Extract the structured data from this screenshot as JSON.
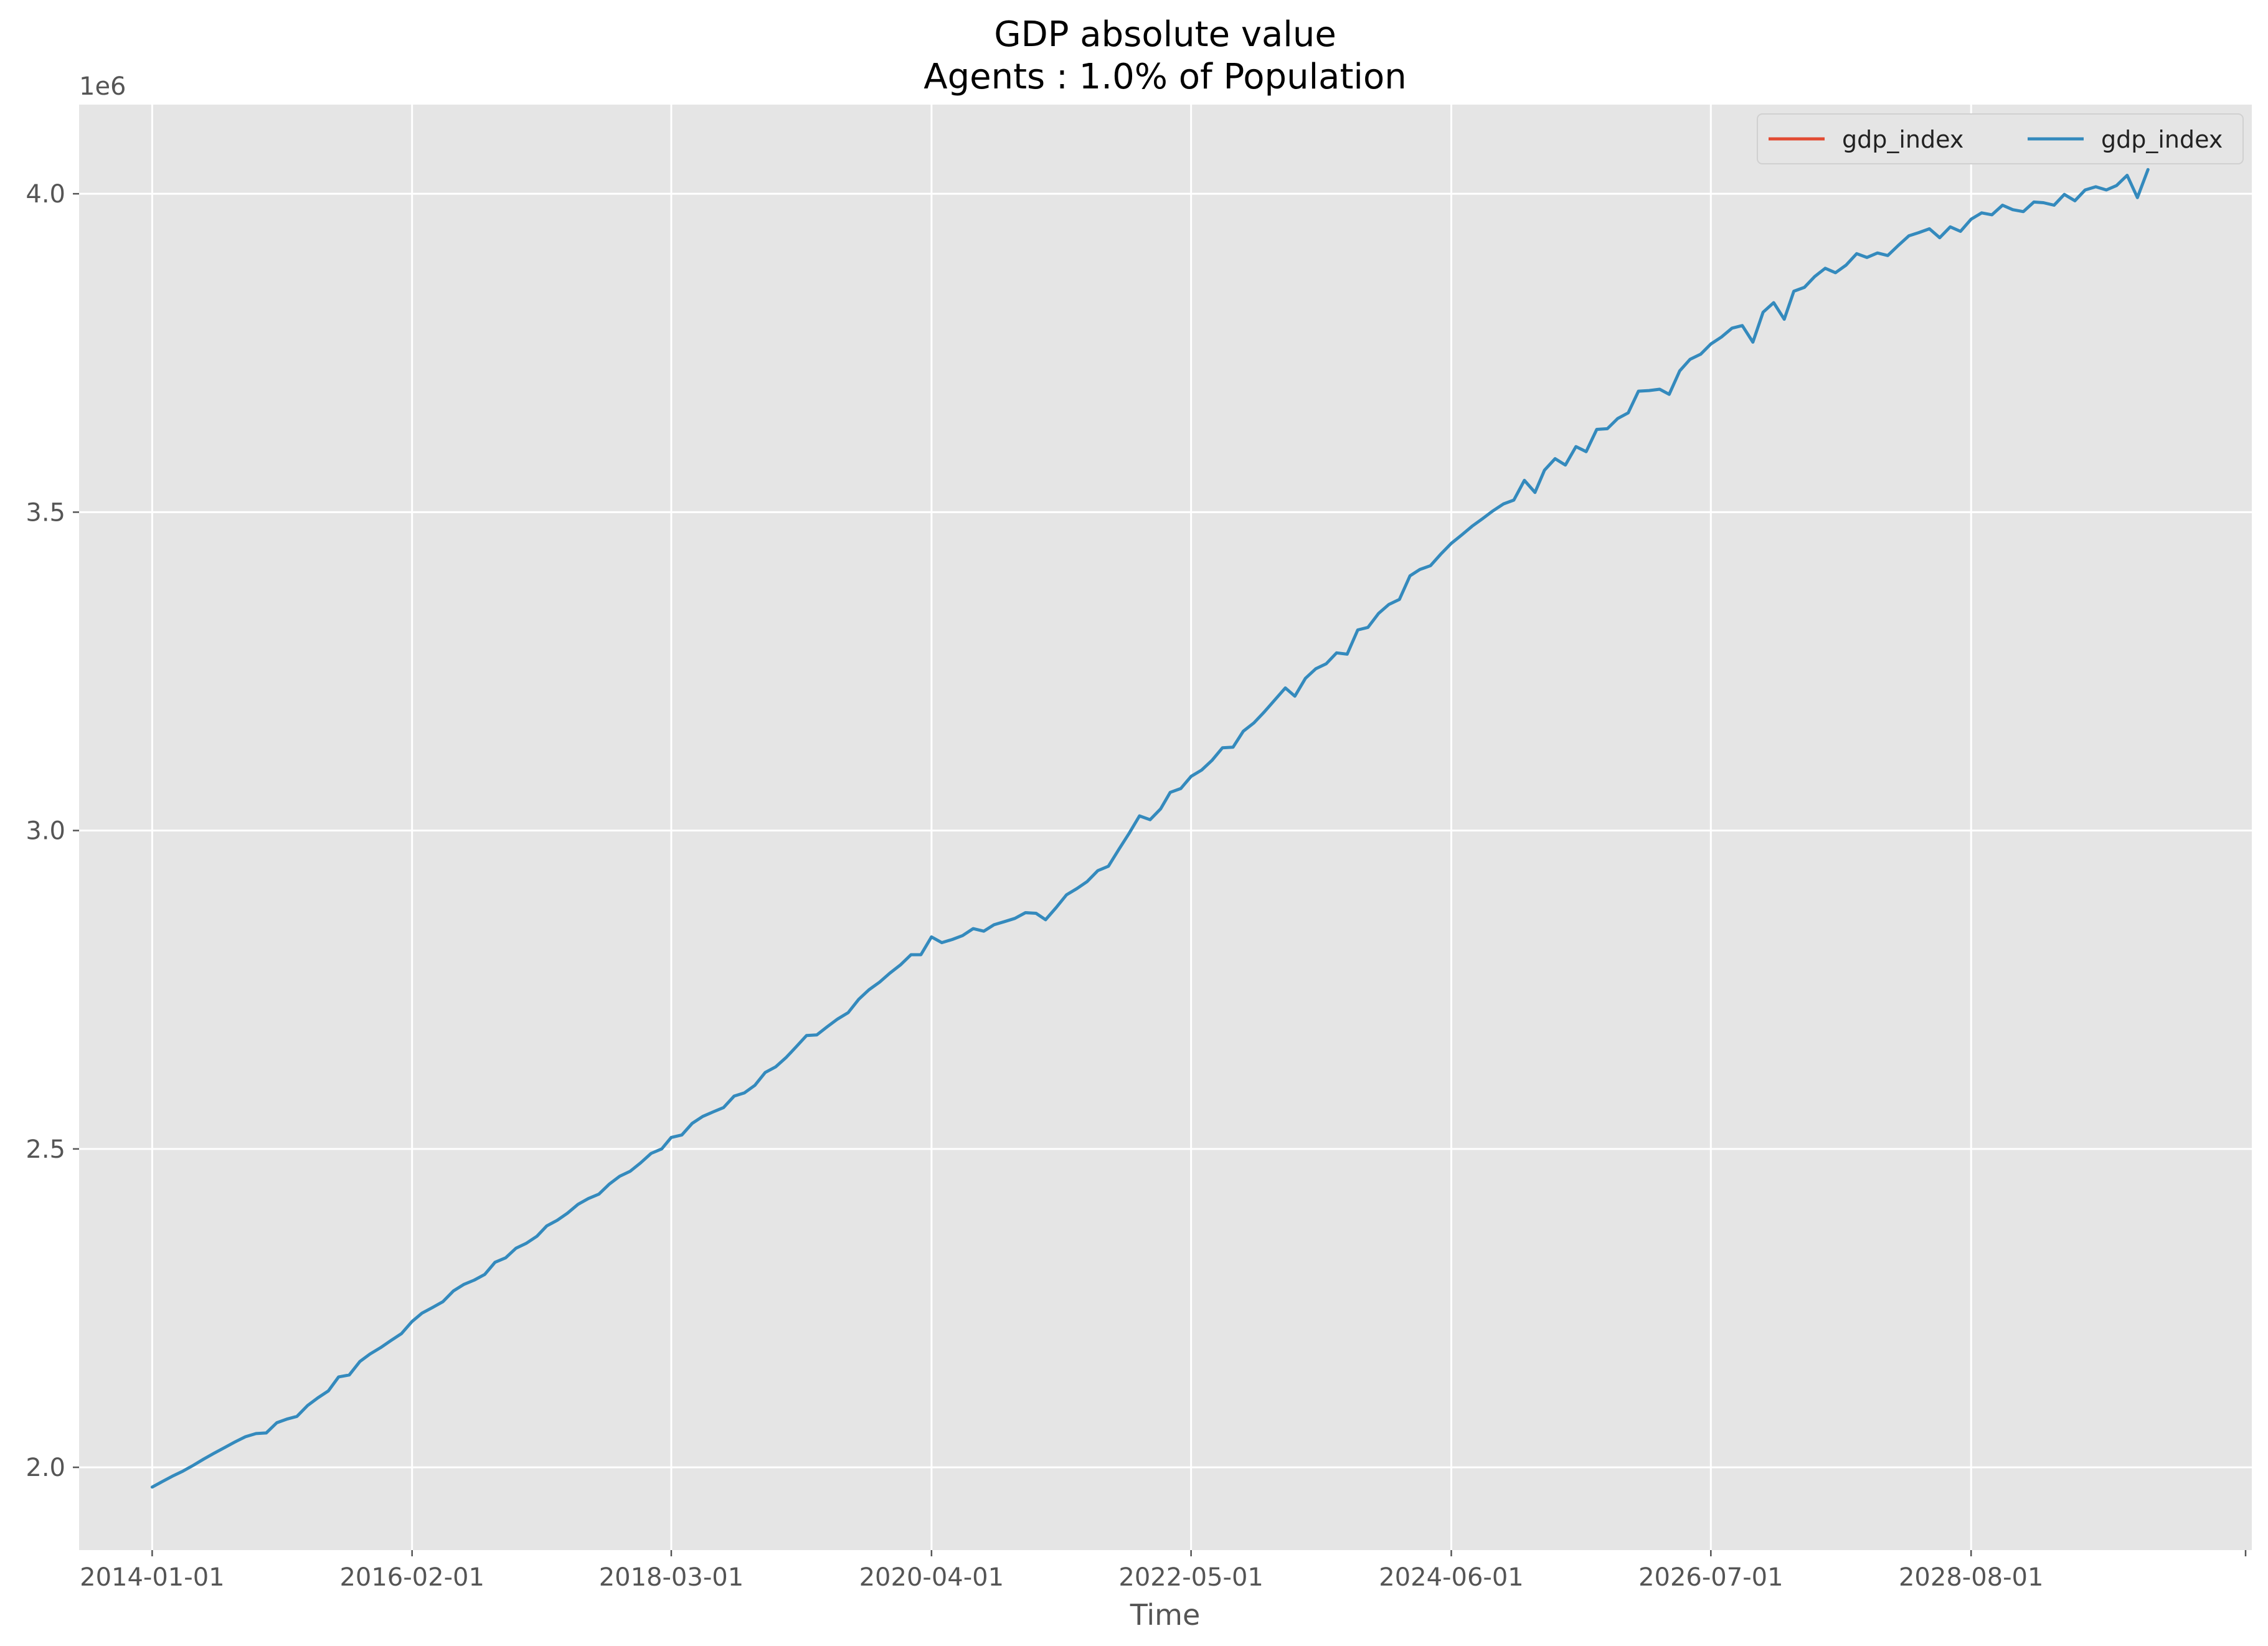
{
  "chart_data": {
    "type": "line",
    "title": "GDP absolute value",
    "subtitle": "Agents : 1.0% of Population",
    "xlabel": "Time",
    "ylabel": "",
    "y_scale_label": "1e6",
    "y_multiplier": 1000000,
    "xlim": [
      "2013-06-01",
      "2030-11-01"
    ],
    "ylim": [
      1.87,
      4.14
    ],
    "grid": true,
    "legend_position": "top-right",
    "x_ticks": [
      "2014-01-01",
      "2016-02-01",
      "2018-03-01",
      "2020-04-01",
      "2022-05-01",
      "2024-06-01",
      "2026-07-01",
      "2028-08-01"
    ],
    "y_ticks": [
      2.0,
      2.5,
      3.0,
      3.5,
      4.0
    ],
    "y_tick_labels": [
      "2.0",
      "2.5",
      "3.0",
      "3.5",
      "4.0"
    ],
    "colors": {
      "background": "#E5E5E5",
      "grid": "#FFFFFF",
      "series_red": "#E24A33",
      "series_blue": "#348ABD"
    },
    "series": [
      {
        "name": "gdp_index",
        "color": "#E24A33",
        "values": []
      },
      {
        "name": "gdp_index",
        "color": "#348ABD",
        "x_start": "2014-01-01",
        "frequency": "monthly",
        "values": [
          1.969,
          1.978,
          1.986,
          1.994,
          2.003,
          2.013,
          2.022,
          2.031,
          2.04,
          2.048,
          2.053,
          2.054,
          2.07,
          2.076,
          2.08,
          2.097,
          2.109,
          2.12,
          2.142,
          2.145,
          2.166,
          2.178,
          2.188,
          2.199,
          2.21,
          2.229,
          2.242,
          2.251,
          2.26,
          2.277,
          2.287,
          2.294,
          2.303,
          2.322,
          2.329,
          2.344,
          2.352,
          2.363,
          2.379,
          2.388,
          2.399,
          2.413,
          2.422,
          2.429,
          2.445,
          2.457,
          2.465,
          2.478,
          2.493,
          2.5,
          2.518,
          2.522,
          2.54,
          2.551,
          2.558,
          2.565,
          2.583,
          2.588,
          2.6,
          2.62,
          2.629,
          2.644,
          2.66,
          2.678,
          2.679,
          2.692,
          2.704,
          2.714,
          2.735,
          2.75,
          2.762,
          2.776,
          2.789,
          2.805,
          2.805,
          2.833,
          2.824,
          2.829,
          2.835,
          2.846,
          2.842,
          2.852,
          2.857,
          2.862,
          2.871,
          2.87,
          2.86,
          2.879,
          2.899,
          2.909,
          2.92,
          2.937,
          2.944,
          2.97,
          2.996,
          3.023,
          3.017,
          3.034,
          3.06,
          3.066,
          3.085,
          3.095,
          3.11,
          3.13,
          3.131,
          3.156,
          3.169,
          3.186,
          3.205,
          3.224,
          3.211,
          3.239,
          3.254,
          3.262,
          3.279,
          3.277,
          3.315,
          3.319,
          3.341,
          3.355,
          3.363,
          3.4,
          3.41,
          3.416,
          3.434,
          3.451,
          3.464,
          3.478,
          3.49,
          3.502,
          3.513,
          3.519,
          3.55,
          3.531,
          3.566,
          3.584,
          3.574,
          3.603,
          3.595,
          3.63,
          3.631,
          3.647,
          3.656,
          3.69,
          3.691,
          3.693,
          3.685,
          3.722,
          3.74,
          3.748,
          3.764,
          3.775,
          3.789,
          3.793,
          3.767,
          3.814,
          3.829,
          3.803,
          3.847,
          3.853,
          3.87,
          3.883,
          3.876,
          3.888,
          3.906,
          3.9,
          3.907,
          3.903,
          3.919,
          3.934,
          3.939,
          3.945,
          3.931,
          3.948,
          3.941,
          3.96,
          3.97,
          3.967,
          3.982,
          3.975,
          3.972,
          3.987,
          3.986,
          3.982,
          3.999,
          3.989,
          4.006,
          4.011,
          4.006,
          4.013,
          4.029,
          3.994,
          4.038
        ]
      }
    ]
  }
}
